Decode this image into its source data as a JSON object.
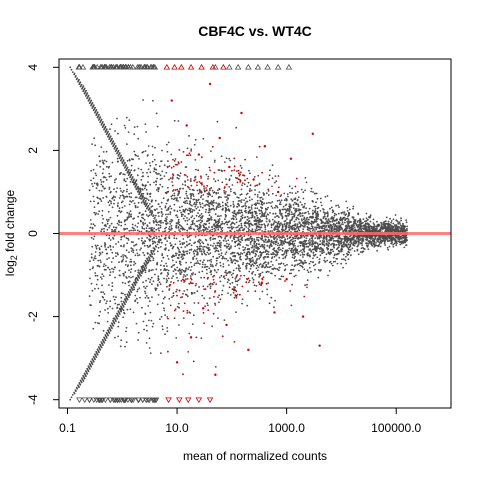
{
  "chart_data": {
    "type": "scatter",
    "title": "CBF4C vs. WT4C",
    "xlabel": "mean of normalized counts",
    "ylabel_main": "log",
    "ylabel_sub": "2",
    "ylabel_rest": " fold change",
    "x_scale": "log10",
    "xlim": [
      0.07,
      1000000
    ],
    "ylim": [
      -4.2,
      4.2
    ],
    "x_ticks": [
      {
        "value": 0.1,
        "label": "0.1"
      },
      {
        "value": 10,
        "label": "10.0"
      },
      {
        "value": 1000,
        "label": "1000.0"
      },
      {
        "value": 100000,
        "label": "100000.0"
      }
    ],
    "y_ticks": [
      {
        "value": -4,
        "label": "-4"
      },
      {
        "value": -2,
        "label": "-2"
      },
      {
        "value": 0,
        "label": "0"
      },
      {
        "value": 2,
        "label": "2"
      },
      {
        "value": 4,
        "label": "4"
      }
    ],
    "reference_line": {
      "y": 0,
      "color": "#ff6a6a"
    },
    "colors": {
      "not_significant": "#4d4d4d",
      "significant": "#cc0000",
      "reference_line": "#ff6a6a"
    },
    "series": [
      {
        "points": [
          [
            0.4,
            0.6
          ],
          [
            0.6,
            -0.5
          ],
          [
            1.2,
            1.1
          ],
          [
            2.0,
            -1.2
          ],
          [
            3.5,
            0.8
          ],
          [
            5,
            -0.3
          ],
          [
            8,
            1.5
          ],
          [
            12,
            -1.0
          ],
          [
            20,
            0.4
          ],
          [
            35,
            -0.6
          ],
          [
            60,
            0.9
          ],
          [
            100,
            -0.2
          ],
          [
            200,
            0.5
          ],
          [
            400,
            -0.4
          ],
          [
            800,
            0.3
          ],
          [
            1500,
            -0.2
          ],
          [
            3000,
            0.2
          ],
          [
            6000,
            -0.15
          ],
          [
            12000,
            0.1
          ],
          [
            40000,
            0.05
          ],
          [
            100000,
            0.1
          ],
          [
            160000,
            -0.05
          ]
        ],
        "boundary_up": [
          [
            0.11,
            4
          ],
          [
            0.6,
            3
          ],
          [
            1.2,
            2
          ],
          [
            2.5,
            1
          ],
          [
            4,
            0.4
          ]
        ],
        "boundary_down": [
          [
            0.11,
            -4
          ],
          [
            0.6,
            -3
          ],
          [
            1.2,
            -2
          ],
          [
            2.5,
            -1
          ],
          [
            4,
            -0.4
          ]
        ],
        "capped_top_x_range": [
          0.13,
          4
        ],
        "capped_bottom_x_range": [
          0.11,
          4.5
        ]
      },
      {
        "points": [
          [
            8,
            3.2
          ],
          [
            15,
            2.6
          ],
          [
            25,
            1.9
          ],
          [
            40,
            3.6
          ],
          [
            60,
            2.3
          ],
          [
            90,
            1.6
          ],
          [
            150,
            2.9
          ],
          [
            250,
            1.3
          ],
          [
            400,
            2.1
          ],
          [
            700,
            1.0
          ],
          [
            1200,
            1.8
          ],
          [
            3000,
            2.4
          ],
          [
            10,
            -3.1
          ],
          [
            18,
            -2.5
          ],
          [
            30,
            -1.8
          ],
          [
            50,
            -3.4
          ],
          [
            80,
            -2.2
          ],
          [
            120,
            -1.5
          ],
          [
            200,
            -2.8
          ],
          [
            350,
            -1.2
          ],
          [
            600,
            -1.9
          ],
          [
            1000,
            -1.1
          ],
          [
            2000,
            -2.0
          ],
          [
            4000,
            -2.7
          ]
        ],
        "capped_top": [
          6.5,
          9,
          12,
          18,
          28,
          45,
          70
        ],
        "capped_bottom": [
          7,
          11,
          16,
          25,
          40
        ]
      }
    ]
  }
}
